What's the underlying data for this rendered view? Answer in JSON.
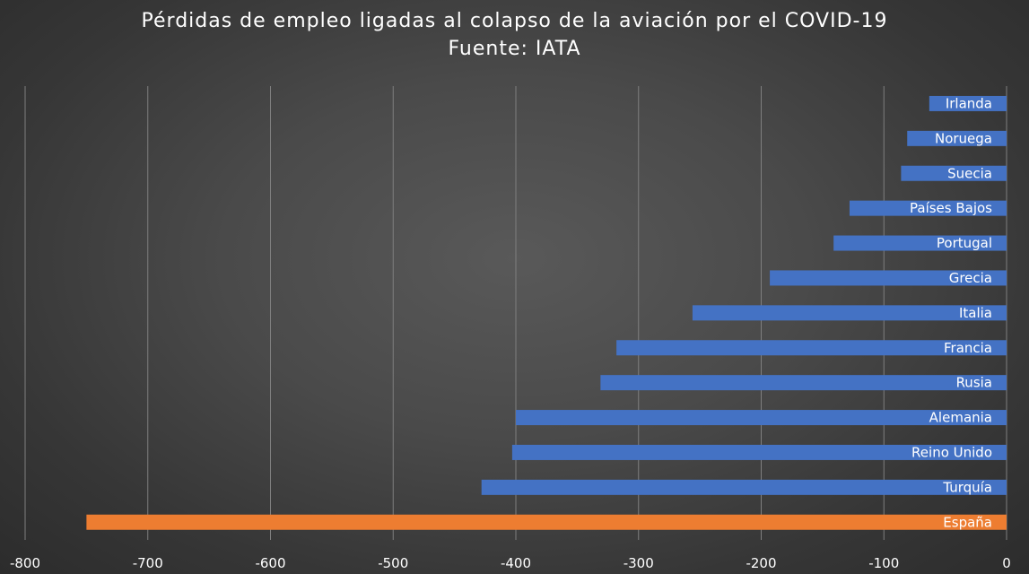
{
  "chart_data": {
    "type": "bar",
    "orientation": "horizontal",
    "title": "Pérdidas de empleo ligadas al colapso de la aviación por el COVID-19",
    "subtitle": "Fuente: IATA",
    "categories": [
      "Irlanda",
      "Noruega",
      "Suecia",
      "Países Bajos",
      "Portugal",
      "Grecia",
      "Italia",
      "Francia",
      "Rusia",
      "Alemania",
      "Reino Unido",
      "Turquía",
      "España"
    ],
    "values": [
      -63,
      -81,
      -86,
      -128,
      -141,
      -193,
      -256,
      -318,
      -331,
      -400,
      -403,
      -428,
      -750
    ],
    "highlight": "España",
    "colors": {
      "default": "#4472C4",
      "highlight": "#ED7D31"
    },
    "xlim": [
      -800,
      0
    ],
    "xticks": [
      -800,
      -700,
      -600,
      -500,
      -400,
      -300,
      -200,
      -100,
      0
    ],
    "grid": true,
    "xlabel": "",
    "ylabel": ""
  }
}
